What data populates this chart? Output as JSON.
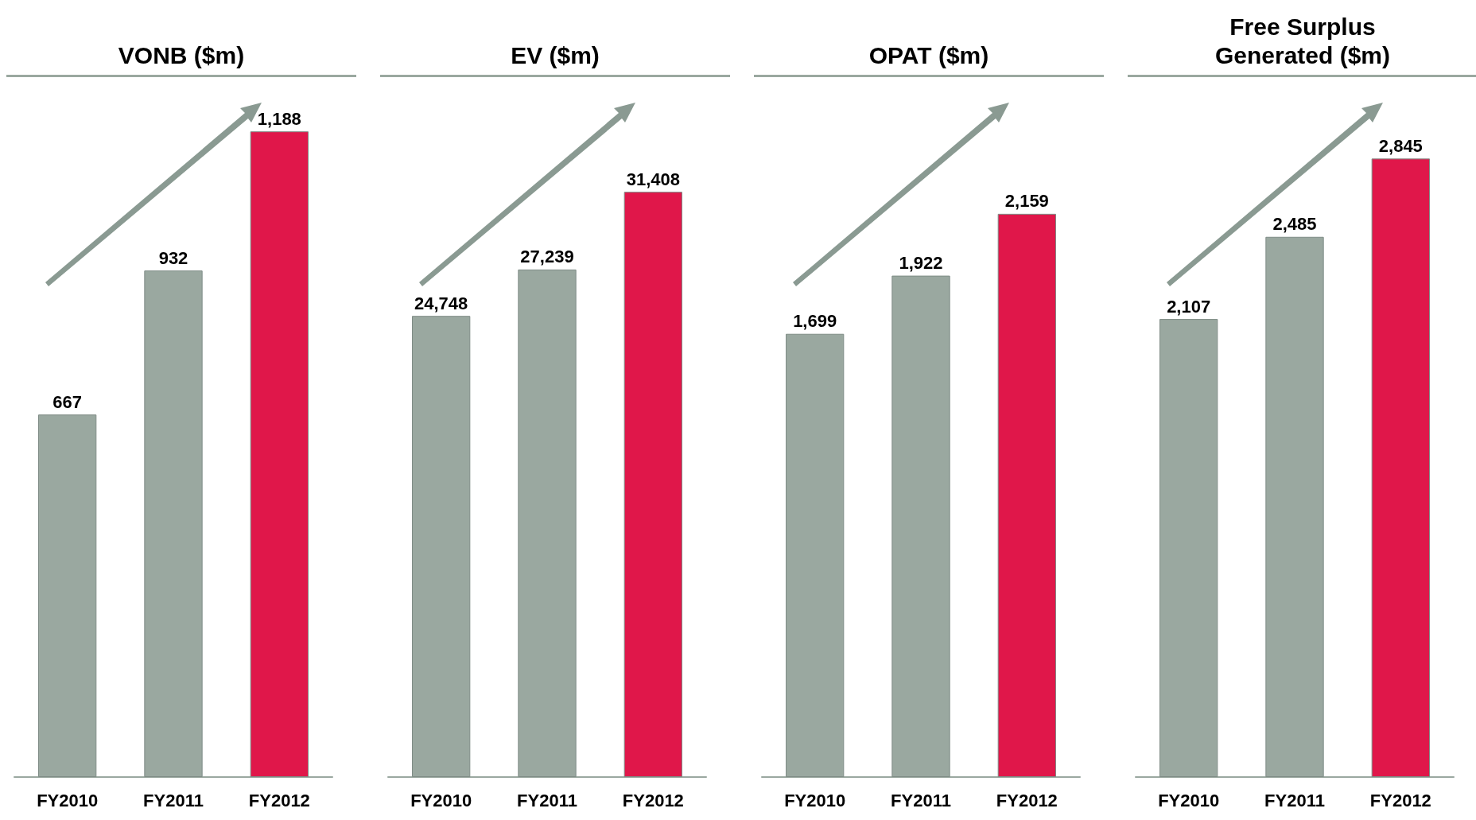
{
  "chart_data": [
    {
      "type": "bar",
      "title": "VONB ($m)",
      "categories": [
        "FY2010",
        "FY2011",
        "FY2012"
      ],
      "values": [
        667,
        932,
        1188
      ],
      "value_labels": [
        "667",
        "932",
        "1,188"
      ],
      "colors": [
        "#9aa8a0",
        "#9aa8a0",
        "#e0174a"
      ]
    },
    {
      "type": "bar",
      "title": "EV ($m)",
      "categories": [
        "FY2010",
        "FY2011",
        "FY2012"
      ],
      "values": [
        24748,
        27239,
        31408
      ],
      "value_labels": [
        "24,748",
        "27,239",
        "31,408"
      ],
      "colors": [
        "#9aa8a0",
        "#9aa8a0",
        "#e0174a"
      ]
    },
    {
      "type": "bar",
      "title": "OPAT ($m)",
      "categories": [
        "FY2010",
        "FY2011",
        "FY2012"
      ],
      "values": [
        1699,
        1922,
        2159
      ],
      "value_labels": [
        "1,699",
        "1,922",
        "2,159"
      ],
      "colors": [
        "#9aa8a0",
        "#9aa8a0",
        "#e0174a"
      ]
    },
    {
      "type": "bar",
      "title": "Free Surplus Generated ($m)",
      "categories": [
        "FY2010",
        "FY2011",
        "FY2012"
      ],
      "values": [
        2107,
        2485,
        2845
      ],
      "value_labels": [
        "2,107",
        "2,485",
        "2,845"
      ],
      "colors": [
        "#9aa8a0",
        "#9aa8a0",
        "#e0174a"
      ]
    }
  ]
}
